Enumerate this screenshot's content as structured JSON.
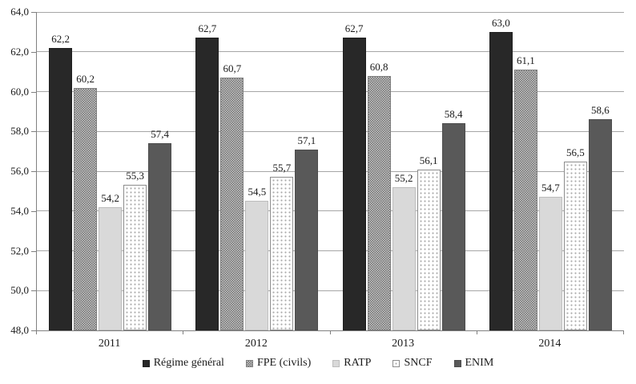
{
  "chart_data": {
    "type": "bar",
    "title": "",
    "categories": [
      "2011",
      "2012",
      "2013",
      "2014"
    ],
    "series": [
      {
        "name": "Régime général",
        "values": [
          62.2,
          62.7,
          62.7,
          63.0
        ],
        "labels": [
          "62,2",
          "62,7",
          "62,7",
          "63,0"
        ],
        "style": "solid-black"
      },
      {
        "name": "FPE (civils)",
        "values": [
          60.2,
          60.7,
          60.8,
          61.1
        ],
        "labels": [
          "60,2",
          "60,7",
          "60,8",
          "61,1"
        ],
        "style": "checker-gray"
      },
      {
        "name": "RATP",
        "values": [
          54.2,
          54.5,
          55.2,
          54.7
        ],
        "labels": [
          "54,2",
          "54,5",
          "55,2",
          "54,7"
        ],
        "style": "solid-lightgray"
      },
      {
        "name": "SNCF",
        "values": [
          55.3,
          55.7,
          56.1,
          56.5
        ],
        "labels": [
          "55,3",
          "55,7",
          "56,1",
          "56,5"
        ],
        "style": "dotted-white"
      },
      {
        "name": "ENIM",
        "values": [
          57.4,
          57.1,
          58.4,
          58.6
        ],
        "labels": [
          "57,4",
          "57,1",
          "58,4",
          "58,6"
        ],
        "style": "solid-darkgray"
      }
    ],
    "ylim": [
      48,
      64
    ],
    "ytick_step": 2,
    "ytick_labels": [
      "48,0",
      "50,0",
      "52,0",
      "54,0",
      "56,0",
      "58,0",
      "60,0",
      "62,0",
      "64,0"
    ],
    "grid": true,
    "legend_position": "bottom"
  },
  "colors": {
    "bar_black": "#282828",
    "bar_checker_dark": "#6f6f6f",
    "bar_checker_light": "#c9c9c9",
    "bar_lightgray": "#d9d9d9",
    "bar_dotted_bg": "#ffffff",
    "bar_dotted_dot": "#a8a8a8",
    "bar_darkgray": "#595959",
    "gridline": "#a6a6a6",
    "axis": "#808080",
    "text": "#1a1a1a"
  }
}
